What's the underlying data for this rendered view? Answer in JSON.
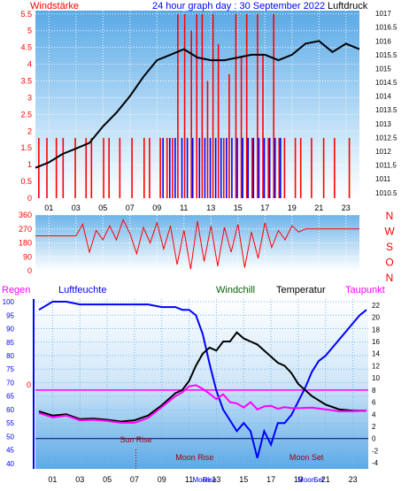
{
  "colors": {
    "wind": "#ff0000",
    "gust": "#0000ff",
    "pressure": "#000000",
    "humidity": "#0000ff",
    "windchill": "#006400",
    "temperature": "#000000",
    "dewpoint": "#ff00ff",
    "title": "#0000ff",
    "axis_left": "#0000ff"
  },
  "chart_data": [
    {
      "type": "bar",
      "title": "24 hour graph day : 30 September 2022",
      "left_label": "Windstärke",
      "right_label": "Luftdruck",
      "x_ticks": [
        "01",
        "03",
        "05",
        "07",
        "09",
        "11",
        "13",
        "15",
        "17",
        "19",
        "21",
        "23"
      ],
      "left_ticks": [
        "0",
        "0.5",
        "1",
        "1.5",
        "2",
        "2.5",
        "3",
        "3.5",
        "4",
        "4.5",
        "5",
        "5.5"
      ],
      "right_ticks": [
        "1010.5",
        "1011",
        "1011.5",
        "1012",
        "1012.5",
        "1013",
        "1013.5",
        "1014",
        "1014.5",
        "1015",
        "1015.5",
        "1016",
        "1016.5",
        "1017"
      ],
      "ylim_left": [
        0,
        5.6
      ],
      "ylim_right": [
        1010.3,
        1017.1
      ],
      "series": [
        {
          "name": "Windstärke",
          "x": [
            0.2,
            0.5,
            0.8,
            1.2,
            1.5,
            2.0,
            2.4,
            2.9,
            3.3,
            3.7,
            4.1,
            4.6,
            5.0,
            5.4,
            5.8,
            6.2,
            6.7,
            7.1,
            7.5,
            8.0,
            8.4,
            8.8,
            9.2,
            9.7,
            10.1,
            10.5,
            11.0,
            11.5,
            11.9,
            12.3,
            12.7,
            13.1,
            13.5,
            13.9,
            14.3,
            14.8,
            15.2,
            15.6,
            16.0,
            16.4,
            16.8,
            17.2,
            17.6,
            18.0,
            18.4,
            18.8,
            19.2,
            19.6,
            20.0,
            20.4,
            20.9,
            21.3,
            21.7,
            22.1,
            22.6,
            23.2
          ],
          "values": [
            1.8,
            0,
            1.8,
            0,
            1.8,
            1.8,
            0,
            1.8,
            0,
            1.8,
            1.8,
            0,
            1.8,
            1.8,
            0,
            1.8,
            0,
            1.8,
            0,
            1.8,
            1.8,
            0,
            1.8,
            1.8,
            1.8,
            5.5,
            5.5,
            5.0,
            5.5,
            5.5,
            3.5,
            5.5,
            4.6,
            1.8,
            3.7,
            5.5,
            4.2,
            5.5,
            1.8,
            5.5,
            4.3,
            1.8,
            5.5,
            1.8,
            1.8,
            0,
            1.8,
            1.8,
            0,
            1.8,
            0,
            1.8,
            0,
            1.8,
            0,
            1.8
          ]
        },
        {
          "name": "Böen",
          "x": [
            9.4,
            9.9,
            10.3,
            10.8,
            11.2,
            11.6,
            12.1,
            12.5,
            12.9,
            13.3,
            13.7,
            14.1,
            14.5,
            14.9,
            15.3,
            15.7,
            16.1,
            16.5,
            16.9,
            17.3,
            17.7,
            18.1
          ],
          "values": [
            1.8,
            1.8,
            1.8,
            1.8,
            1.8,
            1.8,
            1.8,
            1.8,
            1.8,
            1.8,
            1.8,
            1.8,
            1.8,
            1.8,
            1.8,
            1.8,
            1.8,
            1.8,
            1.8,
            1.8,
            1.8,
            1.8
          ]
        },
        {
          "name": "Luftdruck",
          "x": [
            0,
            1,
            2,
            3,
            4,
            5,
            6,
            7,
            8,
            9,
            10,
            11,
            12,
            13,
            14,
            15,
            16,
            17,
            18,
            19,
            20,
            21,
            22,
            23,
            24
          ],
          "values": [
            1011.4,
            1011.6,
            1011.9,
            1012.1,
            1012.3,
            1012.9,
            1013.4,
            1014.0,
            1014.7,
            1015.3,
            1015.5,
            1015.7,
            1015.4,
            1015.3,
            1015.3,
            1015.4,
            1015.5,
            1015.5,
            1015.3,
            1015.5,
            1015.9,
            1016.0,
            1015.6,
            1015.9,
            1015.7
          ]
        }
      ]
    },
    {
      "type": "scatter",
      "title": "",
      "right_letters": [
        "N",
        "W",
        "S",
        "O",
        "N"
      ],
      "y_ticks": [
        "360",
        "270",
        "180",
        "90",
        "0"
      ],
      "ylim": [
        0,
        360
      ],
      "series": [
        {
          "name": "Windrichtung",
          "x": [
            0,
            1,
            2,
            3,
            3.5,
            4,
            4.5,
            5,
            5.5,
            6,
            6.5,
            7,
            7.5,
            8,
            8.5,
            9,
            9.5,
            10,
            10.5,
            11,
            11.5,
            12,
            12.5,
            13,
            13.5,
            14,
            14.5,
            15,
            15.5,
            16,
            16.5,
            17,
            17.5,
            18,
            18.5,
            19,
            19.5,
            20,
            21,
            22,
            23,
            24
          ],
          "values": [
            225,
            225,
            225,
            225,
            300,
            120,
            260,
            200,
            290,
            200,
            330,
            240,
            110,
            280,
            180,
            310,
            140,
            290,
            40,
            260,
            10,
            320,
            60,
            290,
            30,
            280,
            120,
            300,
            20,
            250,
            80,
            310,
            150,
            260,
            200,
            290,
            250,
            270,
            270,
            270,
            270,
            270
          ]
        }
      ]
    },
    {
      "type": "line",
      "title": "",
      "legend": [
        "Regen",
        "Luftfeuchte",
        "Windchill",
        "Temperatur",
        "Taupunkt"
      ],
      "left_ticks": [
        "100",
        "95",
        "90",
        "85",
        "80",
        "75",
        "70",
        "65",
        "60",
        "55",
        "50",
        "45",
        "40"
      ],
      "right_ticks": [
        "22",
        "20",
        "18",
        "16",
        "14",
        "12",
        "10",
        "8",
        "6",
        "4",
        "2",
        "0",
        "-2",
        "-4"
      ],
      "rain_marker": "0",
      "ylim_left": [
        38,
        101
      ],
      "ylim_right": [
        -5,
        23
      ],
      "annotations": [
        {
          "text": "Sun Rise",
          "x": 7.1
        },
        {
          "text": "Moon Rise",
          "x": 11.4
        },
        {
          "text": "Moon Set",
          "x": 19.6
        }
      ],
      "bottom_markers": [
        {
          "text": "Moon",
          "x": 11.9
        },
        {
          "text": "Rise",
          "x": 12.5
        },
        {
          "text": "Moon",
          "x": 19.6
        },
        {
          "text": "Set",
          "x": 20.5
        }
      ],
      "series": [
        {
          "name": "Luftfeuchte",
          "x": [
            0,
            1,
            2,
            3,
            4,
            5,
            6,
            7,
            8,
            9,
            10,
            10.5,
            11,
            11.5,
            12,
            12.5,
            13,
            13.5,
            14,
            14.5,
            15,
            15.5,
            16,
            16.5,
            17,
            17.5,
            18,
            18.5,
            19,
            19.5,
            20,
            20.5,
            21,
            21.5,
            22,
            22.5,
            23,
            23.5,
            24
          ],
          "values": [
            97,
            100,
            100,
            99,
            99,
            99,
            99,
            99,
            99,
            98,
            98,
            97,
            97,
            95,
            88,
            77,
            67,
            60,
            56,
            52,
            55,
            52,
            42,
            52,
            47,
            55,
            55,
            58,
            63,
            68,
            74,
            78,
            80,
            83,
            86,
            89,
            92,
            95,
            97
          ]
        },
        {
          "name": "Temperatur",
          "x": [
            0,
            1,
            2,
            3,
            4,
            5,
            6,
            7,
            8,
            9,
            10,
            10.5,
            11,
            11.5,
            12,
            12.5,
            13,
            13.5,
            14,
            14.5,
            15,
            15.5,
            16,
            16.5,
            17,
            17.5,
            18,
            18.5,
            19,
            20,
            21,
            22,
            23,
            24
          ],
          "values": [
            4.5,
            3.8,
            4,
            3.2,
            3.3,
            3.1,
            2.8,
            3.0,
            3.8,
            5.5,
            7.5,
            8,
            9.5,
            12,
            14,
            15,
            14.5,
            16,
            16,
            17.5,
            16.5,
            16,
            15.5,
            14.5,
            13.5,
            12.5,
            12,
            10.8,
            9,
            7,
            5.6,
            4.8,
            4.6,
            4.6
          ]
        },
        {
          "name": "Taupunkt",
          "x": [
            0,
            1,
            2,
            3,
            4,
            5,
            6,
            7,
            8,
            9,
            10,
            10.5,
            11,
            11.5,
            12,
            12.5,
            13,
            13.5,
            14,
            14.5,
            15,
            15.5,
            16,
            16.5,
            17,
            17.5,
            18,
            18.5,
            19,
            20,
            21,
            22,
            23,
            24
          ],
          "values": [
            4.2,
            3.5,
            3.8,
            3.0,
            3.1,
            2.9,
            2.6,
            2.6,
            3.4,
            5.2,
            7.0,
            7.6,
            8.6,
            8.8,
            8.2,
            7.4,
            6.5,
            7.3,
            6.0,
            5.8,
            5.1,
            6.0,
            4.8,
            5.3,
            5.4,
            4.9,
            5.2,
            5.0,
            5.0,
            5.1,
            4.8,
            4.5,
            4.5,
            4.6
          ]
        }
      ]
    }
  ]
}
